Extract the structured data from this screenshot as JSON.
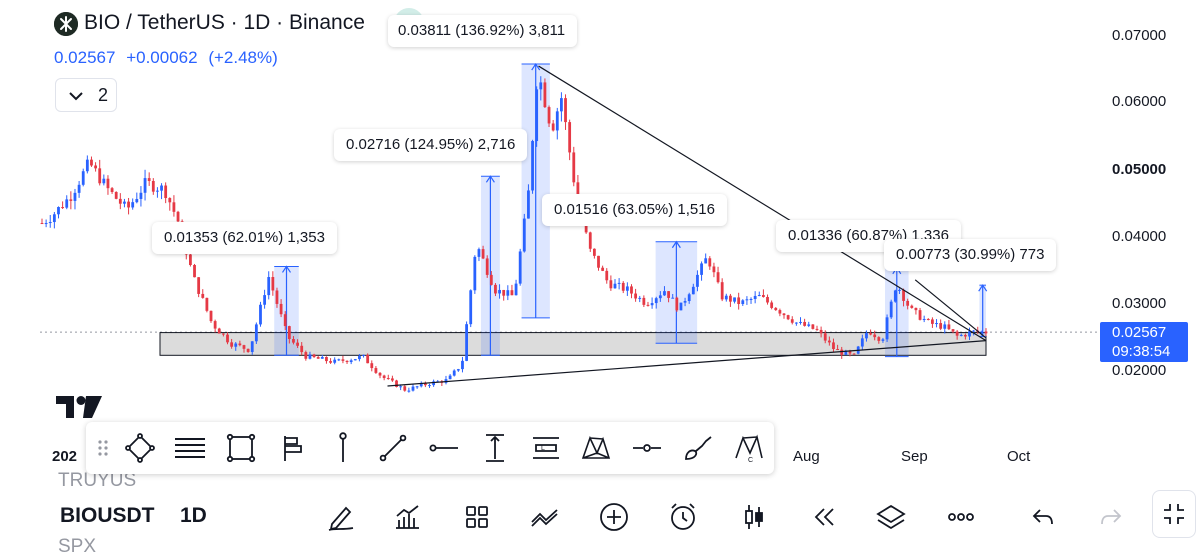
{
  "header": {
    "title": "BIO / TetherUS · 1D · Binance",
    "last_price": "0.02567",
    "change": "+0.00062",
    "change_pct": "(+2.48%)",
    "indicators_count": "2"
  },
  "chart_data": {
    "type": "candlestick",
    "symbol": "BIO / TetherUS",
    "interval": "1D",
    "exchange": "Binance",
    "price_ticks": [
      "0.07000",
      "0.06000",
      "0.05000",
      "0.04000",
      "0.03000",
      "0.02000"
    ],
    "bold_tick": "0.05000",
    "ylim": [
      0.0165,
      0.0745
    ],
    "time_ticks": [
      {
        "label": "202",
        "t": 0.0
      },
      {
        "label": "Aug",
        "t": 0.735
      },
      {
        "label": "Sep",
        "t": 0.86
      },
      {
        "label": "Oct",
        "t": 0.985
      }
    ],
    "current_price": "0.02567",
    "countdown": "09:38:54",
    "colors": {
      "up": "#2962ff",
      "down": "#e53945",
      "measure": "#2962ff",
      "zone": "#d0d0d0"
    },
    "trend": [
      {
        "t": 0.0,
        "p": 0.042
      },
      {
        "t": 0.01,
        "p": 0.043
      },
      {
        "t": 0.03,
        "p": 0.046
      },
      {
        "t": 0.05,
        "p": 0.051
      },
      {
        "t": 0.07,
        "p": 0.047
      },
      {
        "t": 0.09,
        "p": 0.044
      },
      {
        "t": 0.11,
        "p": 0.048
      },
      {
        "t": 0.13,
        "p": 0.047
      },
      {
        "t": 0.145,
        "p": 0.042
      },
      {
        "t": 0.16,
        "p": 0.034
      },
      {
        "t": 0.18,
        "p": 0.027
      },
      {
        "t": 0.2,
        "p": 0.024
      },
      {
        "t": 0.22,
        "p": 0.023
      },
      {
        "t": 0.24,
        "p": 0.034
      },
      {
        "t": 0.26,
        "p": 0.025
      },
      {
        "t": 0.28,
        "p": 0.022
      },
      {
        "t": 0.31,
        "p": 0.0212
      },
      {
        "t": 0.34,
        "p": 0.022
      },
      {
        "t": 0.36,
        "p": 0.019
      },
      {
        "t": 0.385,
        "p": 0.017
      },
      {
        "t": 0.41,
        "p": 0.018
      },
      {
        "t": 0.43,
        "p": 0.0185
      },
      {
        "t": 0.445,
        "p": 0.021
      },
      {
        "t": 0.46,
        "p": 0.039
      },
      {
        "t": 0.48,
        "p": 0.032
      },
      {
        "t": 0.5,
        "p": 0.031
      },
      {
        "t": 0.515,
        "p": 0.046
      },
      {
        "t": 0.525,
        "p": 0.065
      },
      {
        "t": 0.54,
        "p": 0.056
      },
      {
        "t": 0.55,
        "p": 0.061
      },
      {
        "t": 0.565,
        "p": 0.047
      },
      {
        "t": 0.58,
        "p": 0.038
      },
      {
        "t": 0.6,
        "p": 0.033
      },
      {
        "t": 0.62,
        "p": 0.032
      },
      {
        "t": 0.64,
        "p": 0.03
      },
      {
        "t": 0.66,
        "p": 0.032
      },
      {
        "t": 0.675,
        "p": 0.029
      },
      {
        "t": 0.69,
        "p": 0.033
      },
      {
        "t": 0.705,
        "p": 0.037
      },
      {
        "t": 0.72,
        "p": 0.031
      },
      {
        "t": 0.74,
        "p": 0.03
      },
      {
        "t": 0.76,
        "p": 0.031
      },
      {
        "t": 0.78,
        "p": 0.029
      },
      {
        "t": 0.8,
        "p": 0.027
      },
      {
        "t": 0.82,
        "p": 0.026
      },
      {
        "t": 0.84,
        "p": 0.023
      },
      {
        "t": 0.86,
        "p": 0.022
      },
      {
        "t": 0.875,
        "p": 0.026
      },
      {
        "t": 0.89,
        "p": 0.0245
      },
      {
        "t": 0.905,
        "p": 0.033
      },
      {
        "t": 0.92,
        "p": 0.029
      },
      {
        "t": 0.94,
        "p": 0.027
      },
      {
        "t": 0.955,
        "p": 0.0265
      },
      {
        "t": 0.97,
        "p": 0.025
      },
      {
        "t": 0.985,
        "p": 0.0257
      }
    ],
    "support_zone": {
      "low": 0.0222,
      "high": 0.0256,
      "t_start": 0.14,
      "t_end": 1.0
    },
    "trendlines": [
      {
        "t1": 0.366,
        "p1": 0.0176,
        "t2": 1.0,
        "p2": 0.0244
      },
      {
        "t1": 0.526,
        "p1": 0.0655,
        "t2": 1.0,
        "p2": 0.0244
      },
      {
        "t1": 0.925,
        "p1": 0.0335,
        "t2": 1.0,
        "p2": 0.0248
      }
    ],
    "measures": [
      {
        "t1": 0.246,
        "t2": 0.272,
        "low": 0.0222,
        "high": 0.0355,
        "text": "0.01353 (62.01%) 1,353"
      },
      {
        "t1": 0.465,
        "t2": 0.485,
        "low": 0.0222,
        "high": 0.049,
        "text": "0.02716 (124.95%) 2,716"
      },
      {
        "t1": 0.508,
        "t2": 0.538,
        "low": 0.0278,
        "high": 0.0658,
        "text": "0.03811 (136.92%) 3,811"
      },
      {
        "t1": 0.65,
        "t2": 0.694,
        "low": 0.024,
        "high": 0.0392,
        "text": "0.01516 (63.05%) 1,516"
      },
      {
        "t1": 0.893,
        "t2": 0.918,
        "low": 0.022,
        "high": 0.0353,
        "text": "0.01336 (60.87%) 1,336"
      },
      {
        "t1": 0.993,
        "t2": 1.0,
        "low": 0.025,
        "high": 0.0327,
        "text": "0.00773 (30.99%) 773"
      }
    ]
  },
  "measure_pills": {
    "m1": "0.01353 (62.01%) 1,353",
    "m2": "0.02716 (124.95%) 2,716",
    "m3": "0.03811 (136.92%) 3,811",
    "m4": "0.01516 (63.05%) 1,516",
    "m5": "0.01336 (60.87%) 1,336",
    "m6": "0.00773 (30.99%) 773"
  },
  "drawing_toolbar": {
    "tools": [
      "shape-tool-icon",
      "fib-lines-icon",
      "rectangle-icon",
      "flags-icon",
      "vertical-line-icon",
      "trend-line-icon",
      "horizontal-ray-icon",
      "price-range-icon",
      "long-position-icon",
      "xabcd-pattern-icon",
      "horizontal-line-icon",
      "brush-icon",
      "abcd-pattern-icon"
    ]
  },
  "watchlist": {
    "above": "TRUYUS",
    "below": "SPX"
  },
  "bottom_bar": {
    "symbol": "BIOUSDT",
    "timeframe": "1D"
  }
}
